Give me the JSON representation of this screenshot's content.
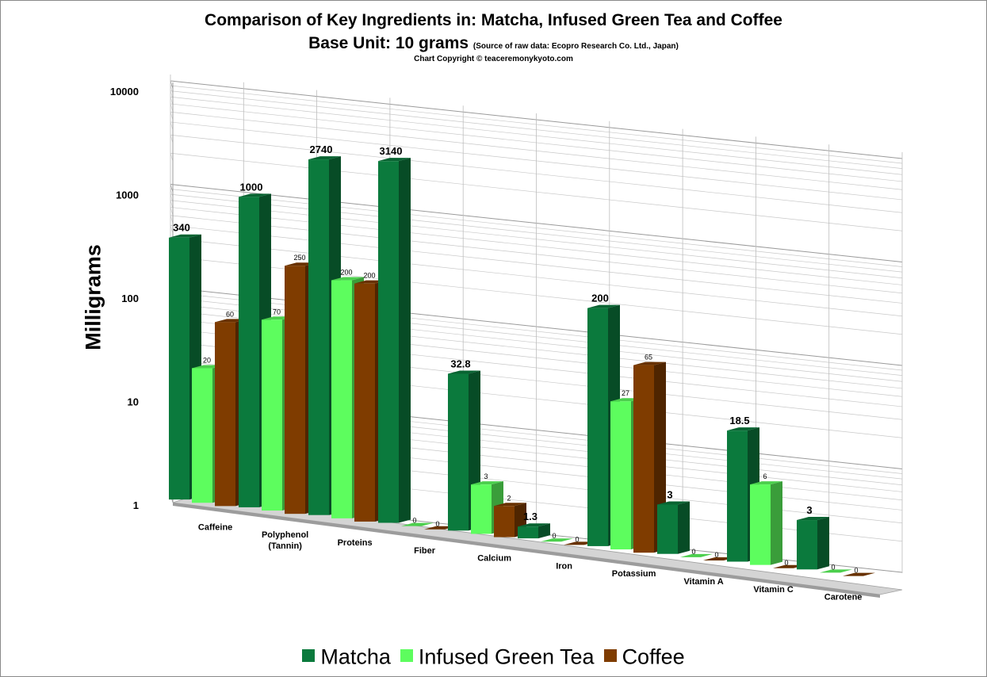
{
  "chart_data": {
    "type": "bar",
    "title": "Comparison of Key Ingredients in: Matcha, Infused Green Tea and Coffee",
    "subtitle": "Base Unit: 10 grams",
    "source_note": "(Source of raw data: Ecopro Research Co. Ltd., Japan)",
    "copyright": "Chart Copyright © teaceremonykyoto.com",
    "ylabel": "Milligrams",
    "xlabel": "",
    "yscale": "log",
    "ylim": [
      1,
      10000
    ],
    "yticks": [
      "1",
      "10",
      "100",
      "1000",
      "10000"
    ],
    "grid": true,
    "legend_position": "bottom",
    "categories": [
      [
        "Caffeine"
      ],
      [
        "Polyphenol",
        "(Tannin)"
      ],
      [
        "Proteins"
      ],
      [
        "Fiber"
      ],
      [
        "Calcium"
      ],
      [
        "Iron"
      ],
      [
        "Potassium"
      ],
      [
        "Vitamin A"
      ],
      [
        "Vitamin C"
      ],
      [
        "Carotene"
      ]
    ],
    "series": [
      {
        "name": "Matcha",
        "color": "#0b7a3d",
        "values": [
          340,
          1000,
          2740,
          3140,
          32.8,
          1.3,
          200,
          3,
          18.5,
          3
        ],
        "labels": [
          "340",
          "1000",
          "2740",
          "3140",
          "32.8",
          "1.3",
          "200",
          "3",
          "18.5",
          "3"
        ]
      },
      {
        "name": "Infused Green Tea",
        "color": "#5dfd5e",
        "values": [
          20,
          70,
          200,
          0,
          3,
          0,
          27,
          0,
          6,
          0
        ],
        "labels": [
          "20",
          "70",
          "200",
          "0",
          "3",
          "0",
          "27",
          "0",
          "6",
          "0"
        ]
      },
      {
        "name": "Coffee",
        "color": "#7f3c00",
        "values": [
          60,
          250,
          200,
          0,
          2,
          0,
          65,
          0,
          0,
          0
        ],
        "labels": [
          "60",
          "250",
          "200",
          "0",
          "2",
          "0",
          "65",
          "0",
          "0",
          "0"
        ]
      }
    ]
  }
}
